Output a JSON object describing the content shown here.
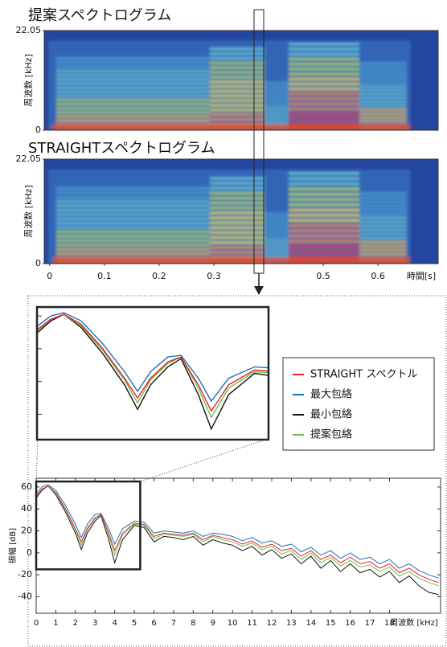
{
  "chart_data": [
    {
      "type": "spectrogram",
      "title": "提案スペクトログラム",
      "ylabel": "周波数 [kHz]",
      "ylim": [
        0,
        22.05
      ],
      "yticks": [
        0,
        22.05
      ]
    },
    {
      "type": "spectrogram",
      "title": "STRAIGHTスペクトログラム",
      "ylabel": "周波数 [kHz]",
      "ylim": [
        0,
        22.05
      ],
      "yticks": [
        0,
        22.05
      ],
      "xlabel": "時間[s]",
      "xlim": [
        -0.01,
        0.71
      ],
      "xticks": [
        0,
        0.1,
        0.2,
        0.3,
        0.5,
        0.6
      ]
    },
    {
      "type": "line",
      "xlabel": "周波数 [kHz]",
      "ylabel": "振幅 [dB]",
      "xlim": [
        0,
        20.6
      ],
      "ylim": [
        -55,
        68
      ],
      "xticks": [
        0,
        1,
        2,
        3,
        4,
        5,
        6,
        7,
        8,
        9,
        10,
        11,
        12,
        13,
        14,
        15,
        16,
        17,
        18
      ],
      "yticks": [
        -40,
        -20,
        0,
        20,
        40,
        60
      ],
      "zoom": {
        "xlim": [
          0,
          5.3
        ],
        "ylim": [
          -15,
          65
        ]
      },
      "x": [
        0,
        0.3,
        0.6,
        1,
        1.5,
        2,
        2.3,
        2.6,
        3,
        3.3,
        3.7,
        4,
        4.4,
        5,
        5.5,
        6,
        6.5,
        7,
        7.5,
        8,
        8.5,
        9,
        9.5,
        10,
        10.5,
        11,
        11.5,
        12,
        12.5,
        13,
        13.5,
        14,
        14.5,
        15,
        15.5,
        16,
        16.5,
        17,
        17.5,
        18,
        18.5,
        19,
        19.5,
        20,
        20.5
      ],
      "series": [
        {
          "name": "STRAIGHT スペクトル",
          "color": "#e8212a",
          "values": [
            52,
            58,
            61,
            55,
            40,
            22,
            10,
            22,
            32,
            35,
            18,
            2,
            18,
            27,
            26,
            15,
            18,
            17,
            16,
            18,
            12,
            16,
            14,
            12,
            8,
            11,
            5,
            8,
            2,
            4,
            -3,
            2,
            -6,
            -2,
            -9,
            -4,
            -10,
            -8,
            -14,
            -10,
            -18,
            -14,
            -20,
            -24,
            -27
          ]
        },
        {
          "name": "最大包絡",
          "color": "#1f6fb5",
          "values": [
            54,
            60,
            62,
            57,
            43,
            26,
            14,
            26,
            35,
            36,
            22,
            8,
            22,
            29,
            28,
            18,
            20,
            19,
            18,
            20,
            15,
            18,
            17,
            15,
            11,
            14,
            9,
            11,
            6,
            8,
            1,
            5,
            -2,
            2,
            -5,
            0,
            -6,
            -4,
            -10,
            -6,
            -14,
            -10,
            -16,
            -20,
            -23
          ]
        },
        {
          "name": "最小包絡",
          "color": "#111111",
          "values": [
            50,
            57,
            61,
            53,
            37,
            18,
            3,
            18,
            29,
            34,
            12,
            -9,
            12,
            25,
            23,
            10,
            15,
            14,
            12,
            15,
            7,
            12,
            9,
            7,
            2,
            6,
            -2,
            3,
            -5,
            -1,
            -10,
            -3,
            -14,
            -7,
            -17,
            -10,
            -18,
            -15,
            -22,
            -17,
            -27,
            -21,
            -30,
            -36,
            -38
          ]
        },
        {
          "name": "提案包絡",
          "color": "#6cc04a",
          "values": [
            51,
            58,
            61,
            54,
            39,
            21,
            7,
            21,
            31,
            35,
            16,
            -2,
            16,
            26,
            25,
            13,
            17,
            16,
            15,
            17,
            10,
            15,
            12,
            10,
            6,
            9,
            3,
            6,
            -1,
            2,
            -6,
            0,
            -9,
            -4,
            -12,
            -7,
            -13,
            -11,
            -17,
            -13,
            -21,
            -17,
            -23,
            -27,
            -30
          ]
        }
      ]
    }
  ]
}
